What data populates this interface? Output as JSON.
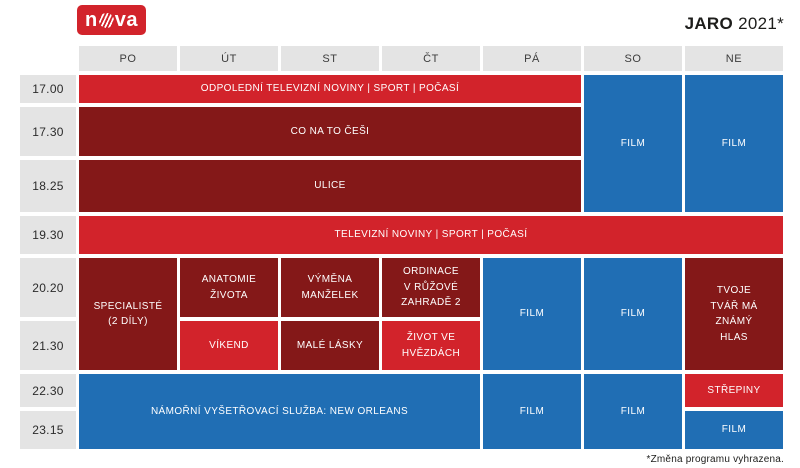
{
  "brand": {
    "name": "nova",
    "logo_left": "n",
    "logo_right": "va"
  },
  "header": {
    "season": "JARO",
    "year": "2021*"
  },
  "colors": {
    "red": "#d2232b",
    "dark_red": "#841818",
    "blue": "#206eb4",
    "gray": "#e4e4e4"
  },
  "chart_data": {
    "type": "table",
    "title": "JARO 2021*",
    "columns": [
      "PO",
      "ÚT",
      "ST",
      "ČT",
      "PÁ",
      "SO",
      "NE"
    ],
    "rows": [
      "17.00",
      "17.30",
      "18.25",
      "19.30",
      "20.20",
      "21.30",
      "22.30",
      "23.15"
    ],
    "programs": [
      {
        "label": "ODPOLEDNÍ TELEVIZNÍ NOVINY | SPORT | POČASÍ",
        "time": "17.00",
        "days": [
          "PO",
          "ÚT",
          "ST",
          "ČT",
          "PÁ"
        ],
        "color": "red"
      },
      {
        "label": "CO NA TO ČEŠI",
        "time": "17.30",
        "days": [
          "PO",
          "ÚT",
          "ST",
          "ČT",
          "PÁ"
        ],
        "color": "dark_red"
      },
      {
        "label": "ULICE",
        "time": "18.25",
        "days": [
          "PO",
          "ÚT",
          "ST",
          "ČT",
          "PÁ"
        ],
        "color": "dark_red"
      },
      {
        "label": "FILM",
        "time": "17.00-18.25",
        "days": [
          "SO"
        ],
        "color": "blue"
      },
      {
        "label": "FILM",
        "time": "17.00-18.25",
        "days": [
          "NE"
        ],
        "color": "blue"
      },
      {
        "label": "TELEVIZNÍ NOVINY | SPORT | POČASÍ",
        "time": "19.30",
        "days": [
          "PO",
          "ÚT",
          "ST",
          "ČT",
          "PÁ",
          "SO",
          "NE"
        ],
        "color": "red"
      },
      {
        "label": "SPECIALISTÉ\n(2 DÍLY)",
        "time": "20.20-21.30",
        "days": [
          "PO"
        ],
        "color": "dark_red"
      },
      {
        "label": "ANATOMIE\nŽIVOTA",
        "time": "20.20",
        "days": [
          "ÚT"
        ],
        "color": "dark_red"
      },
      {
        "label": "VÝMĚNA\nMANŽELEK",
        "time": "20.20",
        "days": [
          "ST"
        ],
        "color": "dark_red"
      },
      {
        "label": "ORDINACE\nV RŮŽOVÉ\nZAHRADĚ 2",
        "time": "20.20",
        "days": [
          "ČT"
        ],
        "color": "dark_red"
      },
      {
        "label": "FILM",
        "time": "20.20-21.30",
        "days": [
          "PÁ"
        ],
        "color": "blue"
      },
      {
        "label": "FILM",
        "time": "20.20-21.30",
        "days": [
          "SO"
        ],
        "color": "blue"
      },
      {
        "label": "TVOJE\nTVÁŘ MÁ\nZNÁMÝ\nHLAS",
        "time": "20.20-21.30",
        "days": [
          "NE"
        ],
        "color": "dark_red"
      },
      {
        "label": "VÍKEND",
        "time": "21.30",
        "days": [
          "ÚT"
        ],
        "color": "red"
      },
      {
        "label": "MALÉ LÁSKY",
        "time": "21.30",
        "days": [
          "ST"
        ],
        "color": "dark_red"
      },
      {
        "label": "ŽIVOT VE\nHVĚZDÁCH",
        "time": "21.30",
        "days": [
          "ČT"
        ],
        "color": "red"
      },
      {
        "label": "NÁMOŘNÍ VYŠETŘOVACÍ SLUŽBA: NEW ORLEANS",
        "time": "22.30-23.15",
        "days": [
          "PO",
          "ÚT",
          "ST",
          "ČT"
        ],
        "color": "blue"
      },
      {
        "label": "FILM",
        "time": "22.30-23.15",
        "days": [
          "PÁ"
        ],
        "color": "blue"
      },
      {
        "label": "FILM",
        "time": "22.30-23.15",
        "days": [
          "SO"
        ],
        "color": "blue"
      },
      {
        "label": "STŘEPINY",
        "time": "22.30",
        "days": [
          "NE"
        ],
        "color": "red"
      },
      {
        "label": "FILM",
        "time": "23.15",
        "days": [
          "NE"
        ],
        "color": "blue"
      }
    ]
  },
  "footer": {
    "note": "*Změna programu vyhrazena."
  }
}
